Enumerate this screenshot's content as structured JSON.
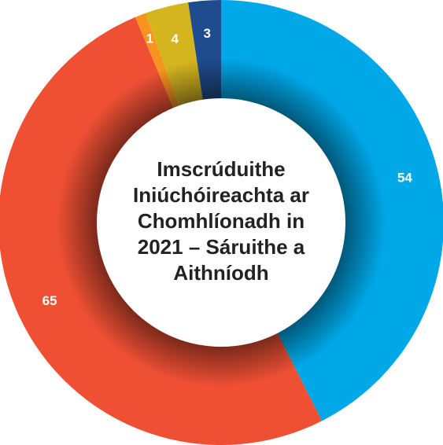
{
  "chart_data": {
    "type": "donut",
    "title": [
      "Imscrúduithe",
      "Iniúchóireachta ar",
      "Chomhlíonadh in",
      "2021 – Sáruithe a",
      "Aithníodh"
    ],
    "categories": [
      null,
      null,
      null,
      null,
      null
    ],
    "values": [
      54,
      65,
      1,
      4,
      3
    ],
    "colors": [
      "#00a8e8",
      "#ef5034",
      "#f7941d",
      "#d4b520",
      "#1f4c8e"
    ]
  }
}
